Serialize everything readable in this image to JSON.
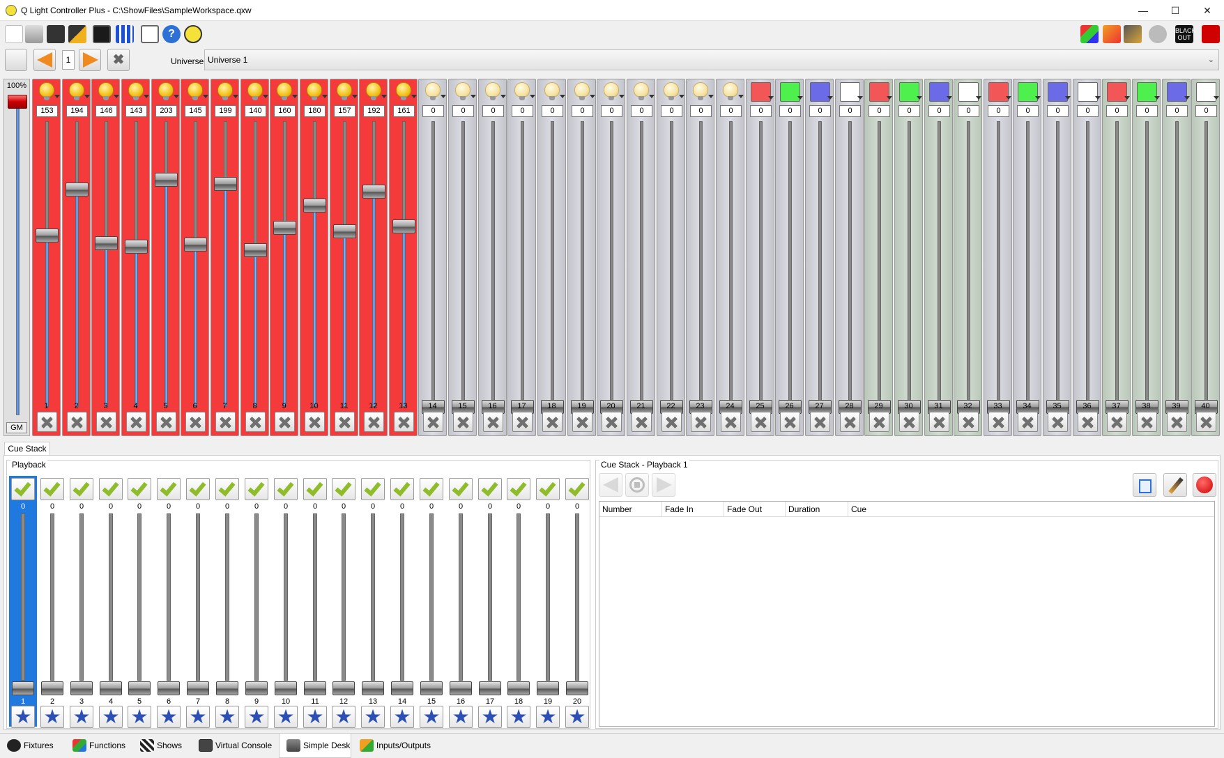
{
  "window": {
    "title": "Q Light Controller Plus - C:\\ShowFiles\\SampleWorkspace.qxw",
    "minimize": "—",
    "maximize": "☐",
    "close": "✕"
  },
  "toolbar": {
    "left_icons": [
      "new-workspace-icon",
      "print-icon",
      "save-icon",
      "save-as-icon",
      "monitor-icon",
      "address-tool-icon",
      "fullscreen-icon",
      "help-icon",
      "about-icon"
    ],
    "right_icons": [
      "live-edit-icon",
      "stop-all-icon",
      "edit-mode-icon",
      "disabled-icon",
      "blackout-icon",
      "operate-mode-icon"
    ],
    "blackout_label": "BLACK OUT"
  },
  "universe_bar": {
    "page": "1",
    "label": "Universe",
    "selected": "Universe 1"
  },
  "grand_master": {
    "percent": "100%",
    "label": "GM",
    "level": 1.0
  },
  "channels": [
    {
      "num": "1",
      "value": "153",
      "type": "dimmer",
      "group": "red"
    },
    {
      "num": "2",
      "value": "194",
      "type": "dimmer",
      "group": "red"
    },
    {
      "num": "3",
      "value": "146",
      "type": "dimmer",
      "group": "red"
    },
    {
      "num": "4",
      "value": "143",
      "type": "dimmer",
      "group": "red"
    },
    {
      "num": "5",
      "value": "203",
      "type": "dimmer",
      "group": "red"
    },
    {
      "num": "6",
      "value": "145",
      "type": "dimmer",
      "group": "red"
    },
    {
      "num": "7",
      "value": "199",
      "type": "dimmer",
      "group": "red"
    },
    {
      "num": "8",
      "value": "140",
      "type": "dimmer",
      "group": "red"
    },
    {
      "num": "9",
      "value": "160",
      "type": "dimmer",
      "group": "red"
    },
    {
      "num": "10",
      "value": "180",
      "type": "dimmer",
      "group": "red"
    },
    {
      "num": "11",
      "value": "157",
      "type": "dimmer",
      "group": "red"
    },
    {
      "num": "12",
      "value": "192",
      "type": "dimmer",
      "group": "red"
    },
    {
      "num": "13",
      "value": "161",
      "type": "dimmer",
      "group": "red"
    },
    {
      "num": "14",
      "value": "0",
      "type": "dimmer",
      "group": "gray"
    },
    {
      "num": "15",
      "value": "0",
      "type": "dimmer",
      "group": "gray"
    },
    {
      "num": "16",
      "value": "0",
      "type": "dimmer",
      "group": "gray"
    },
    {
      "num": "17",
      "value": "0",
      "type": "dimmer",
      "group": "gray"
    },
    {
      "num": "18",
      "value": "0",
      "type": "dimmer",
      "group": "gray"
    },
    {
      "num": "19",
      "value": "0",
      "type": "dimmer",
      "group": "gray"
    },
    {
      "num": "20",
      "value": "0",
      "type": "dimmer",
      "group": "gray"
    },
    {
      "num": "21",
      "value": "0",
      "type": "dimmer",
      "group": "gray"
    },
    {
      "num": "22",
      "value": "0",
      "type": "dimmer",
      "group": "gray"
    },
    {
      "num": "23",
      "value": "0",
      "type": "dimmer",
      "group": "gray"
    },
    {
      "num": "24",
      "value": "0",
      "type": "dimmer",
      "group": "gray"
    },
    {
      "num": "25",
      "value": "0",
      "type": "R",
      "group": "gray"
    },
    {
      "num": "26",
      "value": "0",
      "type": "G",
      "group": "gray"
    },
    {
      "num": "27",
      "value": "0",
      "type": "B",
      "group": "gray"
    },
    {
      "num": "28",
      "value": "0",
      "type": "W",
      "group": "gray"
    },
    {
      "num": "29",
      "value": "0",
      "type": "R",
      "group": "green"
    },
    {
      "num": "30",
      "value": "0",
      "type": "G",
      "group": "green"
    },
    {
      "num": "31",
      "value": "0",
      "type": "B",
      "group": "green"
    },
    {
      "num": "32",
      "value": "0",
      "type": "W",
      "group": "green"
    },
    {
      "num": "33",
      "value": "0",
      "type": "R",
      "group": "gray"
    },
    {
      "num": "34",
      "value": "0",
      "type": "G",
      "group": "gray"
    },
    {
      "num": "35",
      "value": "0",
      "type": "B",
      "group": "gray"
    },
    {
      "num": "36",
      "value": "0",
      "type": "W",
      "group": "gray"
    },
    {
      "num": "37",
      "value": "0",
      "type": "R",
      "group": "green"
    },
    {
      "num": "38",
      "value": "0",
      "type": "G",
      "group": "green"
    },
    {
      "num": "39",
      "value": "0",
      "type": "B",
      "group": "green"
    },
    {
      "num": "40",
      "value": "0",
      "type": "W",
      "group": "green"
    }
  ],
  "lower": {
    "tab": "Cue Stack",
    "playback_title": "Playback",
    "playbacks": [
      {
        "num": "1",
        "value": "0",
        "selected": true
      },
      {
        "num": "2",
        "value": "0"
      },
      {
        "num": "3",
        "value": "0"
      },
      {
        "num": "4",
        "value": "0"
      },
      {
        "num": "5",
        "value": "0"
      },
      {
        "num": "6",
        "value": "0"
      },
      {
        "num": "7",
        "value": "0"
      },
      {
        "num": "8",
        "value": "0"
      },
      {
        "num": "9",
        "value": "0"
      },
      {
        "num": "10",
        "value": "0"
      },
      {
        "num": "11",
        "value": "0"
      },
      {
        "num": "12",
        "value": "0"
      },
      {
        "num": "13",
        "value": "0"
      },
      {
        "num": "14",
        "value": "0"
      },
      {
        "num": "15",
        "value": "0"
      },
      {
        "num": "16",
        "value": "0"
      },
      {
        "num": "17",
        "value": "0"
      },
      {
        "num": "18",
        "value": "0"
      },
      {
        "num": "19",
        "value": "0"
      },
      {
        "num": "20",
        "value": "0"
      }
    ],
    "cue_stack_title": "Cue Stack - Playback 1",
    "columns": [
      "Number",
      "Fade In",
      "Fade Out",
      "Duration",
      "Cue"
    ]
  },
  "bottom_tabs": [
    {
      "label": "Fixtures",
      "icon": "fixtures-icon"
    },
    {
      "label": "Functions",
      "icon": "functions-icon"
    },
    {
      "label": "Shows",
      "icon": "shows-icon"
    },
    {
      "label": "Virtual Console",
      "icon": "virtual-console-icon"
    },
    {
      "label": "Simple Desk",
      "icon": "simple-desk-icon",
      "active": true
    },
    {
      "label": "Inputs/Outputs",
      "icon": "inputs-outputs-icon"
    }
  ]
}
